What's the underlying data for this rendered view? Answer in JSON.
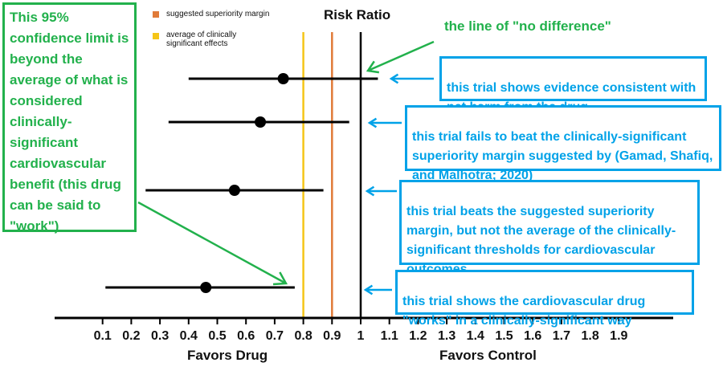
{
  "chart_data": {
    "type": "forest",
    "title": "Risk Ratio",
    "xlabel_left": "Favors Drug",
    "xlabel_right": "Favors Control",
    "xlim": [
      0,
      2.1
    ],
    "ticks": [
      {
        "value": 0.1,
        "label": "0.1"
      },
      {
        "value": 0.2,
        "label": "0.2"
      },
      {
        "value": 0.3,
        "label": "0.3"
      },
      {
        "value": 0.4,
        "label": "0.4"
      },
      {
        "value": 0.5,
        "label": "0.5"
      },
      {
        "value": 0.6,
        "label": "0.6"
      },
      {
        "value": 0.7,
        "label": "0.7"
      },
      {
        "value": 0.8,
        "label": "0.8"
      },
      {
        "value": 0.9,
        "label": "0.9"
      },
      {
        "value": 1.0,
        "label": "1"
      },
      {
        "value": 1.1,
        "label": "1.1"
      },
      {
        "value": 1.2,
        "label": "1.2"
      },
      {
        "value": 1.3,
        "label": "1.3"
      },
      {
        "value": 1.4,
        "label": "1.4"
      },
      {
        "value": 1.5,
        "label": "1.5"
      },
      {
        "value": 1.6,
        "label": "1.6"
      },
      {
        "value": 1.7,
        "label": "1.7"
      },
      {
        "value": 1.8,
        "label": "1.8"
      },
      {
        "value": 1.9,
        "label": "1.9"
      }
    ],
    "reference_lines": [
      {
        "name": "suggested superiority margin",
        "value": 0.9,
        "color": "#e07b39"
      },
      {
        "name": "average of clinically significant effects",
        "value": 0.8,
        "color": "#f5c518"
      },
      {
        "name": "no difference",
        "value": 1.0,
        "color": "#000000"
      }
    ],
    "trials": [
      {
        "estimate": 0.73,
        "lower": 0.4,
        "upper": 1.06
      },
      {
        "estimate": 0.65,
        "lower": 0.33,
        "upper": 0.96
      },
      {
        "estimate": 0.56,
        "lower": 0.25,
        "upper": 0.87
      },
      {
        "estimate": 0.46,
        "lower": 0.11,
        "upper": 0.77
      }
    ]
  },
  "legend": {
    "superiority_label": "suggested superiority margin",
    "clinical_label": "average of clinically significant effects",
    "superiority_color": "#e07b39",
    "clinical_color": "#f5c518"
  },
  "annotations": {
    "left_note": "This 95% confidence limit is beyond the average of what is considered clinically-significant cardiovascular benefit (this drug can be said to \"work\")",
    "no_difference_note": "the line of \"no difference\"",
    "trial_notes": [
      "this trial shows evidence consistent with net harm from the drug",
      "this trial fails to beat the clinically-significant superiority margin suggested by (Gamad, Shafiq, and Malhotra; 2020)",
      "this trial beats the suggested superiority margin, but not the average of the clinically-significant thresholds for cardiovascular outcomes",
      "this trial shows the cardiovascular drug \"works\" in a clinically-significant way"
    ],
    "green_color": "#22b14c",
    "blue_color": "#00a2e8"
  }
}
